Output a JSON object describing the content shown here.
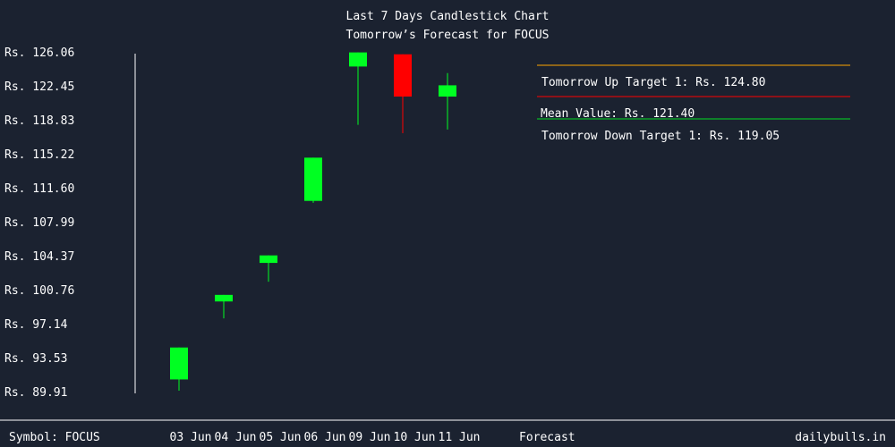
{
  "colors": {
    "background": "#1b2230",
    "text": "#ffffff",
    "up_candle": "#00ff22",
    "down_candle": "#ff0000",
    "up_target_line": "#ffa500",
    "mean_line": "#ff0000",
    "down_target_line": "#00dd22",
    "axis": "#ffffff"
  },
  "chart_data": {
    "type": "candlestick",
    "title": "Last 7 Days Candlestick Chart",
    "subtitle": "Tomorrow’s Forecast for FOCUS",
    "ylim": [
      89.91,
      126.06
    ],
    "y_ticks": [
      "Rs. 126.06",
      "Rs. 122.45",
      "Rs. 118.83",
      "Rs. 115.22",
      "Rs. 111.60",
      "Rs. 107.99",
      "Rs. 104.37",
      "Rs. 100.76",
      "Rs. 97.14",
      "Rs. 93.53",
      "Rs. 89.91"
    ],
    "y_tick_values": [
      126.06,
      122.45,
      118.83,
      115.22,
      111.6,
      107.99,
      104.37,
      100.76,
      97.14,
      93.53,
      89.91
    ],
    "candles": [
      {
        "date": "03 Jun",
        "open": 91.2,
        "close": 94.6,
        "high": 94.6,
        "low": 90.0,
        "direction": "up"
      },
      {
        "date": "04 Jun",
        "open": 99.5,
        "close": 100.2,
        "high": 100.2,
        "low": 97.7,
        "direction": "up"
      },
      {
        "date": "05 Jun",
        "open": 103.6,
        "close": 104.4,
        "high": 104.4,
        "low": 101.6,
        "direction": "up"
      },
      {
        "date": "06 Jun",
        "open": 110.2,
        "close": 114.8,
        "high": 114.8,
        "low": 110.0,
        "direction": "up"
      },
      {
        "date": "09 Jun",
        "open": 124.5,
        "close": 126.0,
        "high": 126.0,
        "low": 118.3,
        "direction": "up"
      },
      {
        "date": "10 Jun",
        "open": 125.8,
        "close": 121.3,
        "high": 125.8,
        "low": 117.4,
        "direction": "down"
      },
      {
        "date": "11 Jun",
        "open": 121.3,
        "close": 122.5,
        "high": 123.8,
        "low": 117.8,
        "direction": "up"
      }
    ],
    "forecast_label": "Forecast",
    "forecast": {
      "up_target_label": "Tomorrow Up Target 1: Rs. 124.80",
      "mean_label": "Mean Value: Rs. 121.40",
      "down_target_label": "Tomorrow Down Target 1: Rs. 119.05"
    }
  },
  "footer": {
    "symbol": "Symbol: FOCUS",
    "site": "dailybulls.in"
  }
}
